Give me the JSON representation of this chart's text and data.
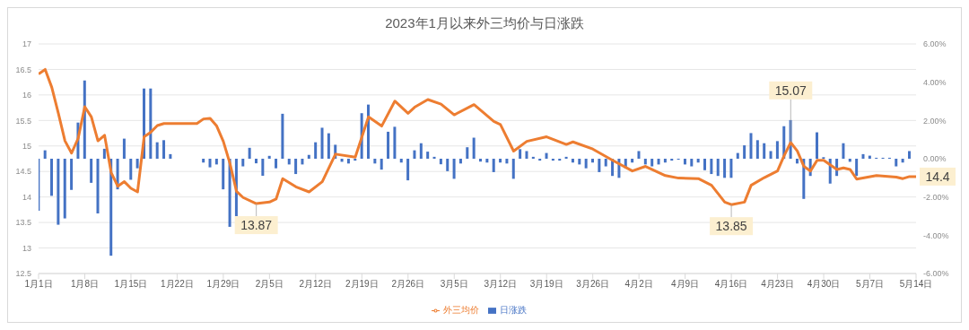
{
  "chart_data": {
    "type": "bar",
    "title": "2023年1月以来外三均价与日涨跌",
    "x": [
      "--01-01",
      "--01-02",
      "--01-03",
      "--01-04",
      "--01-05",
      "--01-06",
      "--01-07",
      "--01-08",
      "--01-09",
      "--01-10",
      "--01-11",
      "--01-12",
      "--01-13",
      "--01-14",
      "--01-15",
      "--01-16",
      "--01-17",
      "--01-18",
      "--01-19",
      "--01-20",
      "--01-21",
      "--01-22",
      "--01-23",
      "--01-24",
      "--01-25",
      "--01-26",
      "--01-27",
      "--01-28",
      "--01-29",
      "--01-30",
      "--01-31",
      "--02-01",
      "--02-02",
      "--02-03",
      "--02-04",
      "--02-05",
      "--02-06",
      "--02-07",
      "--02-08",
      "--02-09",
      "--02-10",
      "--02-11",
      "--02-12",
      "--02-13",
      "--02-14",
      "--02-15",
      "--02-16",
      "--02-17",
      "--02-18",
      "--02-19",
      "--02-20",
      "--02-21",
      "--02-22",
      "--02-23",
      "--02-24",
      "--02-25",
      "--02-26",
      "--02-27",
      "--02-28",
      "--03-01",
      "--03-02",
      "--03-03",
      "--03-04",
      "--03-05",
      "--03-06",
      "--03-07",
      "--03-08",
      "--03-09",
      "--03-10",
      "--03-11",
      "--03-12",
      "--03-13",
      "--03-14",
      "--03-15",
      "--03-16",
      "--03-17",
      "--03-18",
      "--03-19",
      "--03-20",
      "--03-21",
      "--03-22",
      "--03-23",
      "--03-24",
      "--03-25",
      "--03-26",
      "--03-27",
      "--03-28",
      "--03-29",
      "--03-30",
      "--03-31",
      "--04-01",
      "--04-02",
      "--04-03",
      "--04-04",
      "--04-05",
      "--04-06",
      "--04-07",
      "--04-08",
      "--04-09",
      "--04-10",
      "--04-11",
      "--04-12",
      "--04-13",
      "--04-14",
      "--04-15",
      "--04-16",
      "--04-17",
      "--04-18",
      "--04-19",
      "--04-20",
      "--04-21",
      "--04-22",
      "--04-23",
      "--04-24",
      "--04-25",
      "--04-26",
      "--04-27",
      "--04-28",
      "--04-29",
      "--04-30",
      "--05-01",
      "--05-02",
      "--05-03",
      "--05-04",
      "--05-05",
      "--05-06",
      "--05-07",
      "--05-08",
      "--05-09",
      "--05-10",
      "--05-11",
      "--05-12",
      "--05-13"
    ],
    "series": [
      {
        "name": "日涨跌",
        "axis": "y2",
        "color": "#4472c4",
        "values": [
          -2.72,
          0.44,
          -1.94,
          -3.45,
          -3.12,
          -1.63,
          1.89,
          4.09,
          -1.26,
          -2.86,
          0.52,
          -5.07,
          -1.6,
          1.05,
          -1.1,
          -0.5,
          3.67,
          3.67,
          0.86,
          0.97,
          0.24,
          null,
          null,
          null,
          null,
          -0.2,
          -0.45,
          -0.3,
          -1.6,
          -3.56,
          -3.0,
          -0.4,
          0.57,
          -0.24,
          -0.89,
          0.15,
          -0.5,
          2.35,
          -0.3,
          -0.8,
          -0.3,
          0.2,
          0.86,
          1.62,
          1.33,
          0.73,
          -0.16,
          -0.25,
          -0.1,
          2.38,
          2.83,
          -0.25,
          -0.57,
          1.41,
          1.67,
          -0.2,
          -1.13,
          0.44,
          0.81,
          0.37,
          0.1,
          -0.29,
          -0.65,
          -1.05,
          -0.25,
          0.6,
          1.1,
          -0.15,
          -0.2,
          -0.7,
          -0.2,
          -0.25,
          -1.05,
          0.5,
          0.4,
          0.1,
          -0.1,
          0.3,
          -0.1,
          -0.1,
          0.1,
          -0.2,
          -0.3,
          -0.5,
          -0.2,
          -0.7,
          -0.4,
          -0.9,
          -1.0,
          -0.5,
          -0.2,
          0.4,
          -0.3,
          -0.4,
          -0.3,
          -0.2,
          -0.1,
          -0.05,
          -0.3,
          -0.4,
          -0.2,
          -0.6,
          -0.8,
          -0.9,
          -1.0,
          -1.0,
          0.3,
          0.7,
          1.34,
          0.97,
          0.81,
          0.4,
          0.92,
          1.7,
          2.02,
          -0.25,
          -2.1,
          -0.9,
          1.38,
          0.08,
          -1.3,
          -0.9,
          0.81,
          -0.16,
          -0.9,
          0.24,
          0.16,
          0.05,
          0.05,
          0.05,
          -0.4,
          -0.2,
          0.4
        ]
      },
      {
        "name": "外三均价",
        "type": "line",
        "color": "#ed7d31",
        "x": [
          "--01-01",
          "--01-02",
          "--01-03",
          "--01-04",
          "--01-05",
          "--01-06",
          "--01-07",
          "--01-08",
          "--01-09",
          "--01-10",
          "--01-11",
          "--01-12",
          "--01-13",
          "--01-14",
          "--01-15",
          "--01-16",
          "--01-17",
          "--01-18",
          "--01-19",
          "--01-20",
          "--01-25",
          "--01-26",
          "--01-27",
          "--01-28",
          "--01-29",
          "--01-30",
          "--01-31",
          "--02-01",
          "--02-03",
          "--02-05",
          "--02-06",
          "--02-07",
          "--02-09",
          "--02-11",
          "--02-13",
          "--02-15",
          "--02-18",
          "--02-20",
          "--02-22",
          "--02-24",
          "--02-26",
          "--02-27",
          "--03-01",
          "--03-03",
          "--03-05",
          "--03-08",
          "--03-11",
          "--03-12",
          "--03-14",
          "--03-16",
          "--03-19",
          "--03-22",
          "--03-23",
          "--03-26",
          "--03-29",
          "--04-01",
          "--04-03",
          "--04-06",
          "--04-08",
          "--04-11",
          "--04-13",
          "--04-15",
          "--04-16",
          "--04-18",
          "--04-19",
          "--04-21",
          "--04-23",
          "--04-24",
          "--04-25",
          "--04-26",
          "--04-27",
          "--04-28",
          "--04-29",
          "--04-30",
          "--05-02",
          "--05-03",
          "--05-04",
          "--05-05",
          "--05-08",
          "--05-11",
          "--05-12",
          "--05-13",
          "--05-14"
        ],
        "values": [
          16.41,
          16.5,
          16.15,
          15.64,
          15.1,
          14.86,
          15.15,
          15.77,
          15.57,
          15.1,
          15.21,
          14.48,
          14.21,
          14.3,
          14.17,
          14.1,
          15.18,
          15.27,
          15.4,
          15.44,
          15.44,
          15.53,
          15.54,
          15.39,
          15.09,
          14.66,
          14.11,
          13.99,
          13.87,
          13.9,
          13.96,
          14.36,
          14.2,
          14.1,
          14.3,
          14.84,
          14.78,
          15.57,
          15.39,
          15.88,
          15.64,
          15.76,
          15.91,
          15.82,
          15.61,
          15.81,
          15.48,
          15.42,
          14.9,
          15.09,
          15.18,
          15.03,
          15.08,
          14.94,
          14.72,
          14.51,
          14.6,
          14.42,
          14.37,
          14.36,
          14.23,
          13.9,
          13.85,
          13.9,
          14.23,
          14.38,
          14.51,
          14.81,
          15.07,
          14.9,
          14.6,
          14.51,
          14.72,
          14.72,
          14.54,
          14.57,
          14.54,
          14.35,
          14.42,
          14.39,
          14.36,
          14.4,
          14.4
        ]
      }
    ],
    "xlim": [
      "--01-01",
      "--05-14"
    ],
    "xticks": [
      {
        "value": "--01-01",
        "label": "1月1日"
      },
      {
        "value": "--01-08",
        "label": "1月8日"
      },
      {
        "value": "--01-15",
        "label": "1月15日"
      },
      {
        "value": "--01-22",
        "label": "1月22日"
      },
      {
        "value": "--01-29",
        "label": "1月29日"
      },
      {
        "value": "--02-05",
        "label": "2月5日"
      },
      {
        "value": "--02-12",
        "label": "2月12日"
      },
      {
        "value": "--02-19",
        "label": "2月19日"
      },
      {
        "value": "--02-26",
        "label": "2月26日"
      },
      {
        "value": "--03-05",
        "label": "3月5日"
      },
      {
        "value": "--03-12",
        "label": "3月12日"
      },
      {
        "value": "--03-19",
        "label": "3月19日"
      },
      {
        "value": "--03-26",
        "label": "3月26日"
      },
      {
        "value": "--04-02",
        "label": "4月2日"
      },
      {
        "value": "--04-09",
        "label": "4月9日"
      },
      {
        "value": "--04-16",
        "label": "4月16日"
      },
      {
        "value": "--04-23",
        "label": "4月23日"
      },
      {
        "value": "--04-30",
        "label": "4月30日"
      },
      {
        "value": "--05-07",
        "label": "5月7日"
      },
      {
        "value": "--05-14",
        "label": "5月14日"
      }
    ],
    "ylim": [
      12.5,
      17
    ],
    "yticks": [
      12.5,
      13,
      13.5,
      14,
      14.5,
      15,
      15.5,
      16,
      16.5,
      17
    ],
    "y2lim": [
      -6,
      6
    ],
    "y2ticks": [
      {
        "value": -6,
        "label": "-6.00%"
      },
      {
        "value": -4,
        "label": "-4.00%"
      },
      {
        "value": -2,
        "label": "-2.00%"
      },
      {
        "value": 0,
        "label": "0.00%"
      },
      {
        "value": 2,
        "label": "2.00%"
      },
      {
        "value": 4,
        "label": "4.00%"
      },
      {
        "value": 6,
        "label": "6.00%"
      }
    ],
    "annotations": [
      {
        "text": "13.87",
        "x": "--02-03",
        "y": 13.87
      },
      {
        "text": "13.85",
        "x": "--04-16",
        "y": 13.85
      },
      {
        "text": "15.07",
        "x": "--04-25",
        "y": 15.07
      },
      {
        "text": "14.4",
        "x": "--05-14",
        "y": 14.4
      }
    ],
    "grid": "y",
    "legend": "bottom"
  }
}
